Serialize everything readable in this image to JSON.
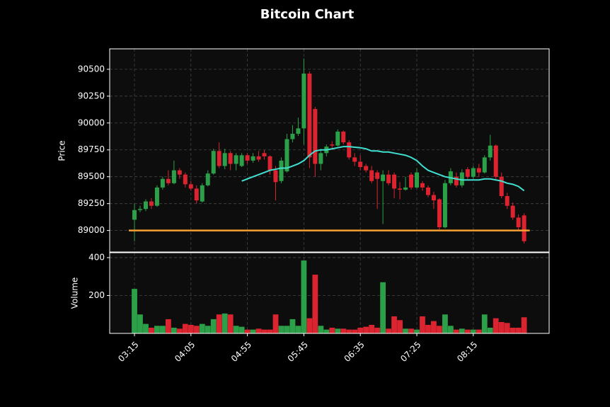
{
  "chart_data": {
    "type": "candlestick",
    "title": "Bitcoin Chart",
    "ylabel": "Price",
    "volume_ylabel": "Volume",
    "categories": [
      "03:15",
      null,
      null,
      null,
      null,
      null,
      null,
      null,
      null,
      null,
      "04:05",
      null,
      null,
      null,
      null,
      null,
      null,
      null,
      null,
      null,
      "04:55",
      null,
      null,
      null,
      null,
      null,
      null,
      null,
      null,
      null,
      "05:45",
      null,
      null,
      null,
      null,
      null,
      null,
      null,
      null,
      null,
      "06:35",
      null,
      null,
      null,
      null,
      null,
      null,
      null,
      null,
      null,
      "07:25",
      null,
      null,
      null,
      null,
      null,
      null,
      null,
      null,
      null,
      "08:15",
      null,
      null,
      null,
      null,
      null,
      null,
      null,
      null,
      null
    ],
    "open": [
      89100,
      89190,
      89200,
      89270,
      89230,
      89400,
      89480,
      89440,
      89560,
      89520,
      89430,
      89390,
      89270,
      89420,
      89530,
      89740,
      89600,
      89720,
      89620,
      89600,
      89700,
      89650,
      89690,
      89720,
      89690,
      89560,
      89460,
      89550,
      89850,
      89900,
      89950,
      90460,
      90130,
      89620,
      89720,
      89800,
      89790,
      89920,
      89820,
      89680,
      89640,
      89600,
      89560,
      89540,
      89460,
      89520,
      89520,
      89390,
      89380,
      89520,
      89400,
      89440,
      89400,
      89330,
      89290,
      89030,
      89440,
      89500,
      89420,
      89570,
      89500,
      89580,
      89540,
      89680,
      89790,
      89500,
      89320,
      89230,
      89120,
      89140
    ],
    "high": [
      89250,
      89230,
      89290,
      89300,
      89420,
      89500,
      89560,
      89650,
      89580,
      89540,
      89460,
      89420,
      89440,
      89560,
      89760,
      89820,
      89760,
      89740,
      89720,
      89720,
      89720,
      89720,
      89740,
      89750,
      89700,
      89600,
      89680,
      89900,
      89980,
      90050,
      90600,
      90480,
      90150,
      89760,
      89800,
      89830,
      89940,
      89930,
      89840,
      89720,
      89700,
      89620,
      89600,
      89560,
      89560,
      89560,
      89540,
      89450,
      89500,
      89540,
      89580,
      89460,
      89420,
      89360,
      89300,
      89470,
      89580,
      89540,
      89570,
      89590,
      89600,
      89620,
      89700,
      89890,
      89800,
      89540,
      89350,
      89260,
      89150,
      89160
    ],
    "low": [
      88900,
      89170,
      89180,
      89200,
      89220,
      89380,
      89420,
      89430,
      89480,
      89400,
      89370,
      89250,
      89260,
      89410,
      89520,
      89580,
      89570,
      89560,
      89560,
      89590,
      89620,
      89630,
      89640,
      89660,
      89520,
      89280,
      89440,
      89540,
      89820,
      89880,
      89800,
      89580,
      89500,
      89560,
      89690,
      89750,
      89780,
      89800,
      89660,
      89600,
      89560,
      89540,
      89440,
      89200,
      89060,
      89420,
      89300,
      89290,
      89370,
      89380,
      89390,
      89370,
      89310,
      89200,
      89010,
      89020,
      89420,
      89400,
      89400,
      89480,
      89480,
      89500,
      89530,
      89650,
      89480,
      89300,
      89200,
      89100,
      89000,
      88880
    ],
    "close": [
      89190,
      89200,
      89270,
      89230,
      89400,
      89480,
      89440,
      89560,
      89520,
      89430,
      89390,
      89280,
      89420,
      89530,
      89740,
      89600,
      89720,
      89620,
      89700,
      89700,
      89650,
      89690,
      89660,
      89690,
      89560,
      89450,
      89650,
      89850,
      89900,
      89950,
      90460,
      89680,
      89620,
      89720,
      89780,
      89790,
      89920,
      89820,
      89680,
      89640,
      89590,
      89560,
      89460,
      89480,
      89520,
      89440,
      89390,
      89380,
      89400,
      89400,
      89540,
      89400,
      89330,
      89280,
      89030,
      89440,
      89550,
      89420,
      89540,
      89500,
      89580,
      89540,
      89680,
      89790,
      89500,
      89320,
      89230,
      89120,
      89030,
      88900
    ],
    "volume": [
      235,
      100,
      50,
      30,
      40,
      40,
      75,
      30,
      25,
      50,
      45,
      40,
      50,
      40,
      75,
      100,
      105,
      100,
      40,
      35,
      20,
      20,
      25,
      20,
      20,
      100,
      40,
      40,
      75,
      40,
      385,
      80,
      310,
      40,
      20,
      30,
      25,
      25,
      20,
      20,
      30,
      35,
      45,
      30,
      270,
      25,
      90,
      70,
      25,
      25,
      20,
      90,
      45,
      65,
      40,
      100,
      40,
      20,
      25,
      20,
      20,
      20,
      100,
      30,
      80,
      60,
      55,
      30,
      30,
      85
    ],
    "up_color": "#2ca048",
    "down_color": "#dc2430",
    "ma": {
      "color": "#40e0d0",
      "values": [
        null,
        null,
        null,
        null,
        null,
        null,
        null,
        null,
        null,
        null,
        null,
        null,
        null,
        null,
        null,
        null,
        null,
        null,
        null,
        89460,
        89480,
        89500,
        89520,
        89540,
        89560,
        89570,
        89580,
        89580,
        89600,
        89620,
        89650,
        89700,
        89740,
        89750,
        89750,
        89760,
        89770,
        89780,
        89780,
        89775,
        89770,
        89760,
        89740,
        89740,
        89730,
        89730,
        89720,
        89710,
        89700,
        89680,
        89650,
        89600,
        89560,
        89540,
        89520,
        89500,
        89490,
        89480,
        89470,
        89470,
        89470,
        89470,
        89480,
        89480,
        89470,
        89460,
        89440,
        89430,
        89410,
        89370
      ]
    },
    "hline": {
      "value": 89000,
      "color": "#f5a030"
    },
    "ylim": [
      88800,
      90690
    ],
    "yticks": [
      89000,
      89250,
      89500,
      89750,
      90000,
      90250,
      90500
    ],
    "volume_ylim": [
      0,
      426
    ],
    "volume_yticks": [
      200,
      400
    ],
    "grid": true
  }
}
